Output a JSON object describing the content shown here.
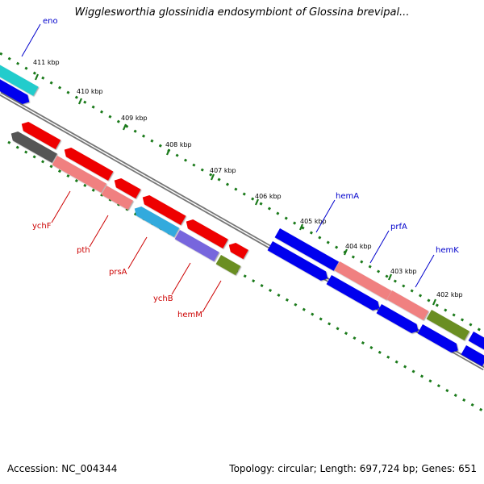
{
  "title": "Wigglesworthia glossinidia endosymbiont of Glossina brevipal...",
  "footer": {
    "accession": "Accession: NC_004344",
    "summary": "Topology: circular; Length: 697,724 bp; Genes: 651"
  },
  "ticks": [
    {
      "label": "411 kbp"
    },
    {
      "label": "410 kbp"
    },
    {
      "label": "409 kbp"
    },
    {
      "label": "408 kbp"
    },
    {
      "label": "407 kbp"
    },
    {
      "label": "406 kbp"
    },
    {
      "label": "405 kbp"
    },
    {
      "label": "404 kbp"
    },
    {
      "label": "403 kbp"
    },
    {
      "label": "402 kbp"
    }
  ],
  "forward_gene_labels": [
    "eno",
    "hemA",
    "prfA",
    "hemK"
  ],
  "reverse_gene_labels": [
    "ychF",
    "pth",
    "prsA",
    "ychB",
    "hemM"
  ],
  "colors": {
    "forward_label": "#0000cc",
    "reverse_label": "#cc0000",
    "tick": "#1a7a1a",
    "backbone": "#808080",
    "blue": "#0000ee",
    "cyan": "#22cccc",
    "red": "#ee0000",
    "pink": "#f08080",
    "gray": "#555555",
    "sky": "#33aadd",
    "lavender": "#7766dd",
    "olive": "#6b8e23"
  }
}
